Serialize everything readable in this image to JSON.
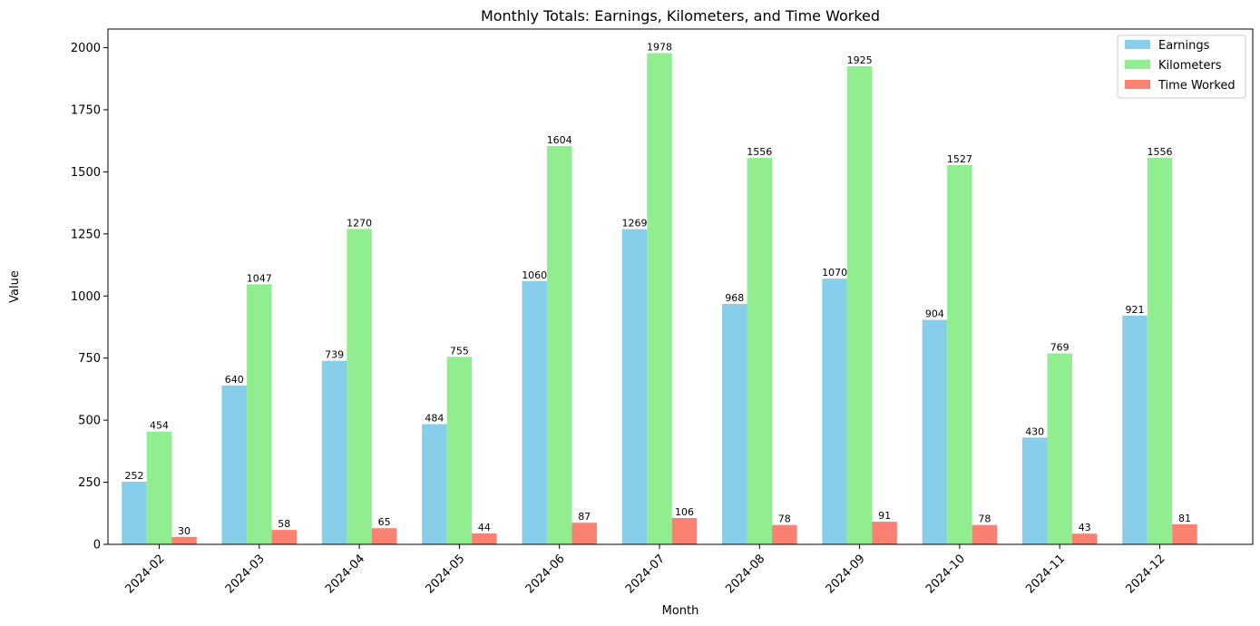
{
  "chart_data": {
    "type": "bar",
    "title": "Monthly Totals: Earnings, Kilometers, and Time Worked",
    "xlabel": "Month",
    "ylabel": "Value",
    "ylim": [
      0,
      2075
    ],
    "yticks": [
      0,
      250,
      500,
      750,
      1000,
      1250,
      1500,
      1750,
      2000
    ],
    "categories": [
      "2024-02",
      "2024-03",
      "2024-04",
      "2024-05",
      "2024-06",
      "2024-07",
      "2024-08",
      "2024-09",
      "2024-10",
      "2024-11",
      "2024-12"
    ],
    "series": [
      {
        "name": "Earnings",
        "color": "#87ceeb",
        "values": [
          252,
          640,
          739,
          484,
          1060,
          1269,
          968,
          1070,
          904,
          430,
          921
        ]
      },
      {
        "name": "Kilometers",
        "color": "#90ee90",
        "values": [
          454,
          1047,
          1270,
          755,
          1604,
          1978,
          1556,
          1925,
          1527,
          769,
          1556
        ]
      },
      {
        "name": "Time Worked",
        "color": "#fa8072",
        "values": [
          30,
          58,
          65,
          44,
          87,
          106,
          78,
          91,
          78,
          43,
          81
        ]
      }
    ],
    "legend_position": "top-right",
    "grid": false
  }
}
